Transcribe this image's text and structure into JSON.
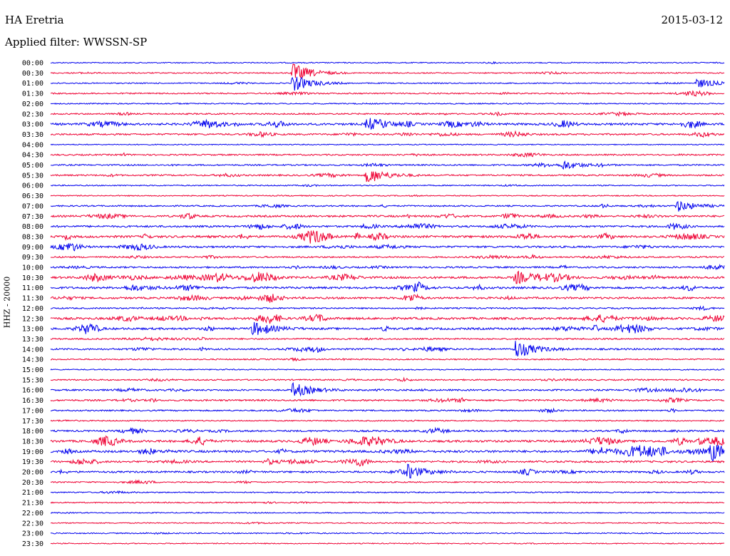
{
  "header": {
    "station": "HA Eretria",
    "date": "2015-03-12",
    "filter": "Applied filter: WWSSN-SP"
  },
  "channel_label": "HHZ - 20000",
  "colors": {
    "even_trace": "#0000ee",
    "odd_trace": "#ee0033"
  },
  "chart_data": {
    "type": "line",
    "title": "HA Eretria",
    "subtitle": "Applied filter: WWSSN-SP",
    "ylabel": "HHZ - 20000",
    "legend": "none",
    "grid": false,
    "row_labels": [
      "00:00",
      "00:30",
      "01:00",
      "01:30",
      "02:00",
      "02:30",
      "03:00",
      "03:30",
      "04:00",
      "04:30",
      "05:00",
      "05:30",
      "06:00",
      "06:30",
      "07:00",
      "07:30",
      "08:00",
      "08:30",
      "09:00",
      "09:30",
      "10:00",
      "10:30",
      "11:00",
      "11:30",
      "12:00",
      "12:30",
      "13:00",
      "13:30",
      "14:00",
      "14:30",
      "15:00",
      "15:30",
      "16:00",
      "16:30",
      "17:00",
      "17:30",
      "18:00",
      "18:30",
      "19:00",
      "19:30",
      "20:00",
      "20:30",
      "21:00",
      "21:30",
      "22:00",
      "22:30",
      "23:00",
      "23:30"
    ],
    "activity_level": [
      0.1,
      0.15,
      0.15,
      0.25,
      0.15,
      0.3,
      0.7,
      0.45,
      0.05,
      0.3,
      0.3,
      0.35,
      0.15,
      0.1,
      0.3,
      0.55,
      0.55,
      0.75,
      0.55,
      0.35,
      0.45,
      0.7,
      0.65,
      0.6,
      0.3,
      0.75,
      0.7,
      0.35,
      0.45,
      0.2,
      0.1,
      0.25,
      0.4,
      0.45,
      0.3,
      0.15,
      0.45,
      0.7,
      0.75,
      0.55,
      0.5,
      0.2,
      0.2,
      0.15,
      0.1,
      0.1,
      0.15,
      0.05
    ],
    "bursts": [
      {
        "row": 1,
        "x": 0.36,
        "amp": 1.0
      },
      {
        "row": 2,
        "x": 0.36,
        "amp": 0.9
      },
      {
        "row": 2,
        "x": 0.96,
        "amp": 0.5
      },
      {
        "row": 6,
        "x": 0.47,
        "amp": 0.7
      },
      {
        "row": 10,
        "x": 0.76,
        "amp": 0.5
      },
      {
        "row": 11,
        "x": 0.47,
        "amp": 0.9
      },
      {
        "row": 14,
        "x": 0.93,
        "amp": 0.6
      },
      {
        "row": 21,
        "x": 0.69,
        "amp": 0.7
      },
      {
        "row": 26,
        "x": 0.3,
        "amp": 0.7
      },
      {
        "row": 28,
        "x": 0.69,
        "amp": 1.0
      },
      {
        "row": 32,
        "x": 0.36,
        "amp": 0.8
      },
      {
        "row": 38,
        "x": 0.98,
        "amp": 1.0
      },
      {
        "row": 40,
        "x": 0.53,
        "amp": 0.7
      }
    ]
  }
}
